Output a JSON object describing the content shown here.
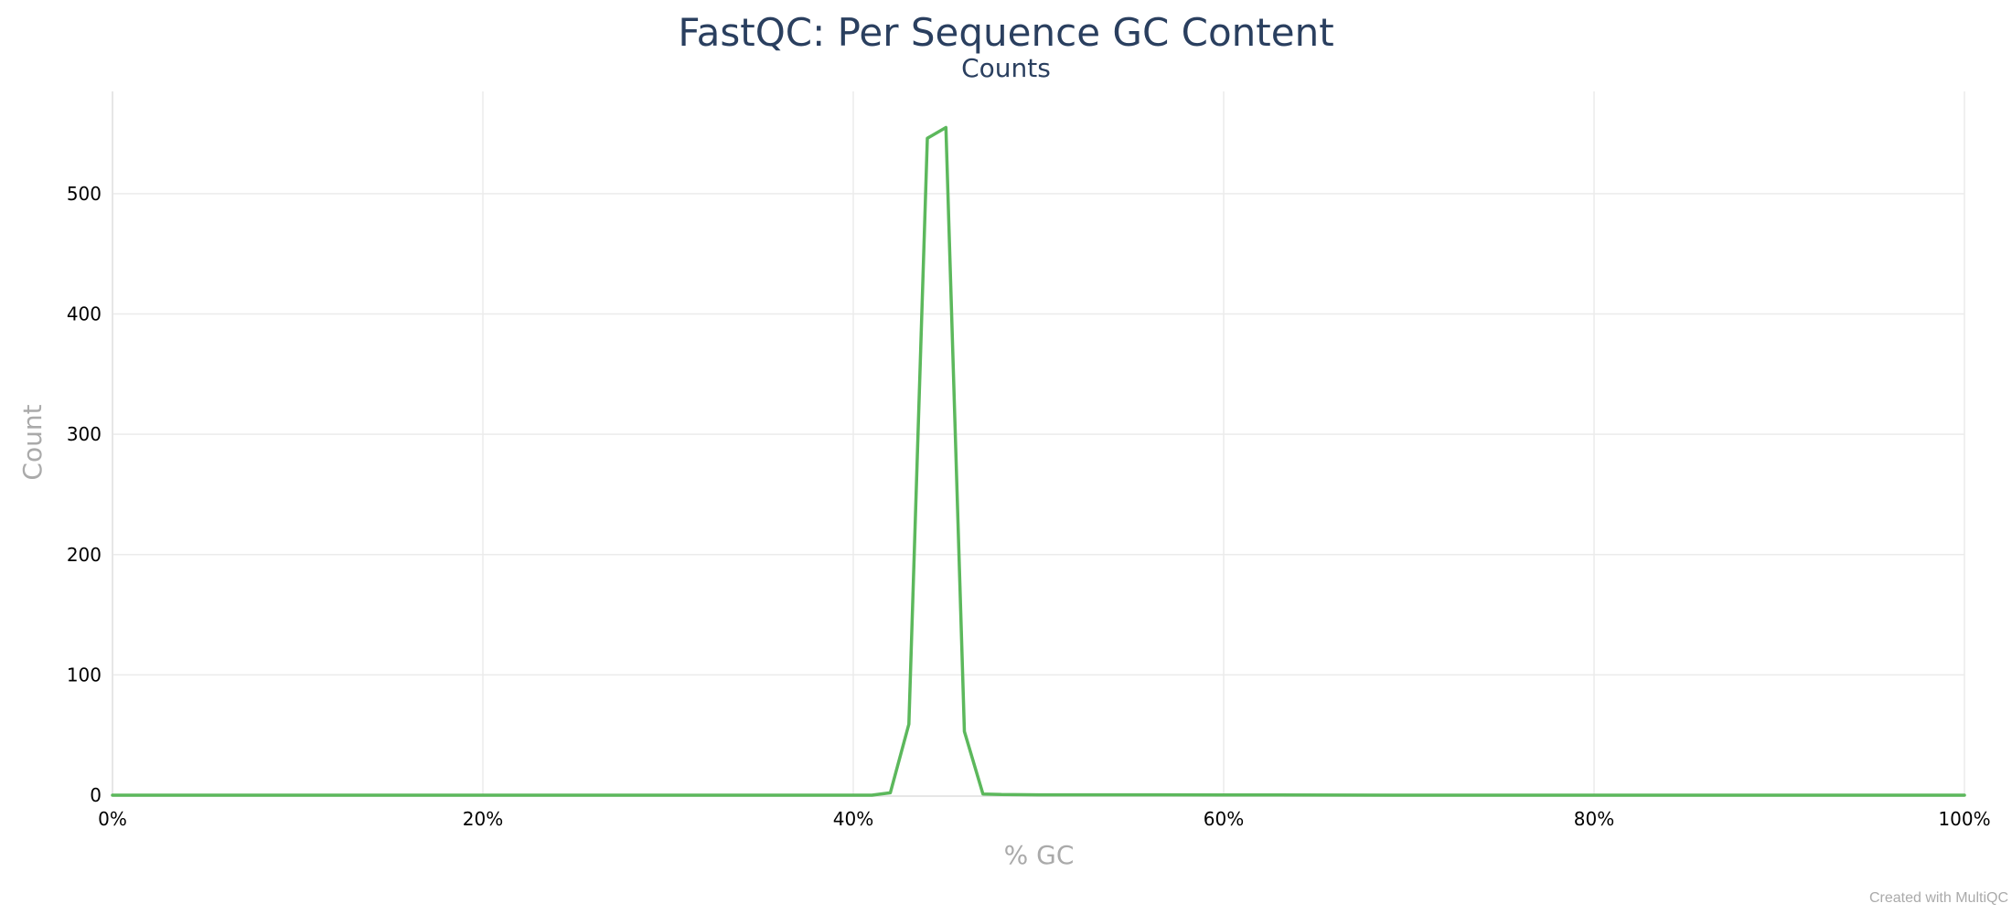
{
  "chart_data": {
    "type": "line",
    "title": "FastQC: Per Sequence GC Content",
    "subtitle": "Counts",
    "xlabel": "% GC",
    "ylabel": "Count",
    "xlim": [
      0,
      100
    ],
    "ylim": [
      0,
      585
    ],
    "x_ticks": [
      {
        "value": 0,
        "label": "0%"
      },
      {
        "value": 20,
        "label": "20%"
      },
      {
        "value": 40,
        "label": "40%"
      },
      {
        "value": 60,
        "label": "60%"
      },
      {
        "value": 80,
        "label": "80%"
      },
      {
        "value": 100,
        "label": "100%"
      }
    ],
    "y_ticks": [
      {
        "value": 0,
        "label": "0"
      },
      {
        "value": 100,
        "label": "100"
      },
      {
        "value": 200,
        "label": "200"
      },
      {
        "value": 300,
        "label": "300"
      },
      {
        "value": 400,
        "label": "400"
      },
      {
        "value": 500,
        "label": "500"
      }
    ],
    "grid": true,
    "series": [
      {
        "color": "#5cb85c",
        "x": [
          0,
          41,
          42,
          43,
          44,
          45,
          46,
          47,
          48,
          50,
          60,
          70,
          80,
          90,
          100
        ],
        "y": [
          0,
          0,
          2,
          59,
          546,
          555,
          53,
          1,
          0.5,
          0.3,
          0.2,
          0,
          0,
          0,
          0
        ]
      }
    ]
  },
  "credit": "Created with MultiQC"
}
